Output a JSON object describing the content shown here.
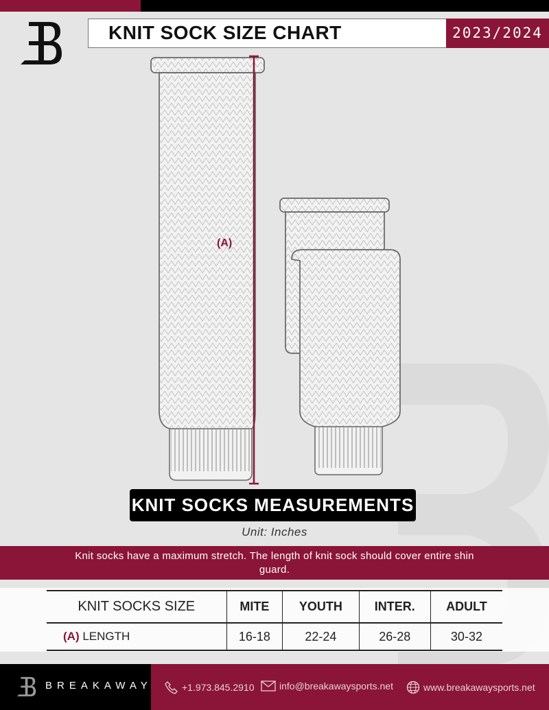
{
  "header": {
    "title": "KNIT SOCK SIZE CHART",
    "season": "2023/2024",
    "logo": "B"
  },
  "diagram": {
    "measure_label": "(A)"
  },
  "banner": "KNIT SOCKS MEASUREMENTS",
  "unit": "Unit: Inches",
  "note": "Knit socks have a maximum stretch. The length of knit sock should cover entire shin guard.",
  "table": {
    "header": [
      "KNIT SOCKS SIZE",
      "MITE",
      "YOUTH",
      "INTER.",
      "ADULT"
    ],
    "rows": [
      {
        "marker": "(A)",
        "label": "LENGTH",
        "values": [
          "16-18",
          "22-24",
          "26-28",
          "30-32"
        ]
      }
    ]
  },
  "footer": {
    "brand": "BREAKAWAY",
    "phone": "+1.973.845.2910",
    "email": "info@breakawaysports.net",
    "website": "www.breakawaysports.net"
  },
  "colors": {
    "accent": "#8a1538",
    "background": "#e4e5e4"
  }
}
